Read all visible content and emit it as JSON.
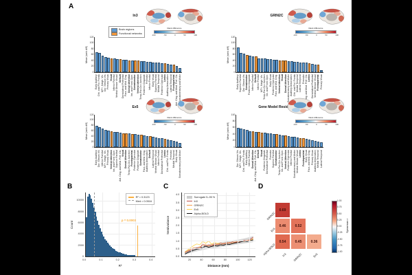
{
  "panel_labels": {
    "a": "A",
    "b": "B",
    "c": "C",
    "d": "D"
  },
  "colors": {
    "bar_region": "#5b9bd5",
    "bar_network": "#f89a38",
    "hist_fill": "#5b96c8",
    "hist_edge": "#2d5f8a",
    "r2_line": "#fbb040",
    "med_line": "#999999",
    "annotation": "#fbb040",
    "band": "#cccccc"
  },
  "brain_inset": {
    "colorbar_label": "Rank difference",
    "ticks": [
      "-100",
      "-50",
      "0",
      "50",
      "100"
    ]
  },
  "chart_data": [
    {
      "id": "in3",
      "type": "bar",
      "title": "In3",
      "ylabel": "Mean |rank diff|",
      "ylim": [
        0,
        120
      ],
      "yticks": [
        0,
        20,
        40,
        60,
        80,
        100,
        120
      ],
      "legend": [
        "Brain regions",
        "Functional networks"
      ],
      "categories": [
        "Early Auditory",
        "Orb. and Pol. Frontal",
        "MT+, Neigh. Vis.",
        "Dor. Stream Vis.",
        "Primary Visual",
        "Visual",
        "Inferior Parietal",
        "Ventral Stream Visual",
        "Default",
        "Dorsolateral Prefrontal",
        "Para. and Mid. Cing.",
        "Dorsal Attention",
        "Ins. and Front. Oper.",
        "Somatomotor",
        "Ventral Attention",
        "Temp-Par-Occ Junction",
        "Posterior Cingulate",
        "Premotor",
        "Inferior Frontal",
        "Early Visual",
        "Superior Parietal",
        "Medial Temporal",
        "Posterior Opercular",
        "Limbic",
        "Auditory Association",
        "Lateral Temporal",
        "Frontoparietal",
        "Ant. Cing. and Med. Pref. Ctx.",
        "Somatosensory and Motor"
      ],
      "values": [
        68,
        66,
        57,
        51,
        49,
        48,
        46,
        45,
        44,
        43,
        42,
        41,
        41,
        40,
        40,
        38,
        37,
        36,
        35,
        34,
        33,
        32,
        31,
        30,
        28,
        27,
        25,
        22,
        13
      ],
      "network_idx": [
        5,
        8,
        11,
        13,
        14,
        23,
        26
      ]
    },
    {
      "id": "grin2c",
      "type": "bar",
      "title": "GRIN2C",
      "ylabel": "Mean |rank diff|",
      "ylim": [
        0,
        120
      ],
      "yticks": [
        0,
        20,
        40,
        60,
        80,
        100,
        120
      ],
      "categories": [
        "Early Auditory",
        "Superior Parietal",
        "Dor. Stream Vis.",
        "Somatomotor",
        "Posterior Cingulate",
        "Inferior Parietal",
        "Default",
        "Inferior Frontal",
        "MT+, Neigh. Vis.",
        "Temp-Par-Occ Junction",
        "Ins. and Front. Oper.",
        "Early Visual",
        "Posterior Opercular",
        "Para. and Mid. Cing.",
        "Ventral Attention",
        "Visual",
        "Dorsal Attention",
        "Somatosensory and Motor",
        "Auditory Association",
        "Orb. and Pol. Frontal",
        "Medial Temporal",
        "Lateral Temporal",
        "Premotor",
        "Ant. Cing. and Med. Pref. Ctx.",
        "Limbic",
        "Dorsolateral Prefrontal",
        "Ventral Stream Visual",
        "Frontoparietal",
        "Primary Visual"
      ],
      "values": [
        85,
        66,
        63,
        60,
        57,
        55,
        53,
        48,
        47,
        46,
        45,
        44,
        43,
        42,
        41,
        40,
        39,
        38,
        37,
        36,
        35,
        34,
        33,
        32,
        30,
        28,
        27,
        25,
        8
      ],
      "network_idx": [
        3,
        6,
        14,
        15,
        16,
        24,
        27
      ]
    },
    {
      "id": "ex5",
      "type": "bar",
      "title": "Ex5",
      "ylabel": "Mean |rank diff|",
      "ylim": [
        0,
        120
      ],
      "yticks": [
        0,
        20,
        40,
        60,
        80,
        100,
        120
      ],
      "categories": [
        "Early Auditory",
        "Dor. Stream Vis.",
        "Inferior Parietal",
        "MT+, Neigh. Vis.",
        "Primary Visual",
        "Ventral Attention",
        "Ins. and Front. Oper.",
        "Superior Parietal",
        "Ant. Cing. and Med. Pref. Ctx.",
        "Visual",
        "Dorsal Attention",
        "Temp-Par-Occ Junction",
        "Frontoparietal",
        "Posterior Opercular",
        "Posterior Cingulate",
        "Somatomotor",
        "Para. and Mid. Cing.",
        "Auditory Association",
        "Default",
        "Lateral Temporal",
        "Ventral Stream Visual",
        "Inferior Frontal",
        "Dorsolateral Prefrontal",
        "Limbic",
        "Orb. and Pol. Frontal",
        "Premotor",
        "Medial Temporal",
        "Early Visual",
        "Somatosensory and Motor"
      ],
      "values": [
        78,
        75,
        70,
        65,
        62,
        58,
        56,
        55,
        54,
        52,
        51,
        50,
        49,
        48,
        46,
        45,
        43,
        41,
        40,
        38,
        36,
        34,
        32,
        30,
        28,
        26,
        24,
        20,
        15
      ],
      "network_idx": [
        5,
        9,
        10,
        12,
        15,
        18,
        23
      ]
    },
    {
      "id": "residuals",
      "type": "bar",
      "title": "Gene Model Residuals",
      "ylabel": "Mean |rank diff|",
      "ylim": [
        0,
        100
      ],
      "yticks": [
        0,
        20,
        40,
        60,
        80,
        100
      ],
      "categories": [
        "Dor. Stream Vis.",
        "MT+, Neigh. Vis.",
        "Orb. and Pol. Frontal",
        "Early Auditory",
        "Inferior Parietal",
        "Dorsal Attention",
        "Ant. Cing. and Med. Pref. Ctx.",
        "Default",
        "Visual",
        "Posterior Cingulate",
        "Dorsolateral Prefrontal",
        "Premotor",
        "Superior Parietal",
        "Somatomotor",
        "Temp-Par-Occ Junction",
        "Ins. and Front. Oper.",
        "Ventral Attention",
        "Posterior Opercular",
        "Inferior Frontal",
        "Somatosensory and Motor",
        "Ventral Stream Visual",
        "Limbic",
        "Frontoparietal",
        "Early Visual",
        "Para. and Mid. Cing.",
        "Primary Visual",
        "Auditory Association",
        "Medial Temporal",
        "Lateral Temporal"
      ],
      "values": [
        60,
        57,
        55,
        53,
        50,
        48,
        47,
        46,
        45,
        44,
        43,
        42,
        41,
        40,
        38,
        37,
        36,
        34,
        33,
        31,
        30,
        28,
        27,
        25,
        24,
        22,
        20,
        18,
        15
      ],
      "network_idx": [
        5,
        7,
        8,
        13,
        16,
        21,
        22
      ]
    },
    {
      "id": "r2_hist",
      "type": "bar",
      "xlabel": "R²",
      "ylabel": "Count",
      "xlim": [
        0,
        0.42
      ],
      "ylim": [
        0,
        11500
      ],
      "xticks": [
        "0.0",
        "0.1",
        "0.2",
        "0.3",
        "0.4"
      ],
      "xtick_vals": [
        0,
        0.1,
        0.2,
        0.3,
        0.4
      ],
      "yticks": [
        0,
        2000,
        4000,
        6000,
        8000,
        10000
      ],
      "bin_start": 0.0,
      "bin_width": 0.0075,
      "counts": [
        7000,
        10800,
        11300,
        11000,
        10400,
        9600,
        8800,
        8000,
        7200,
        6400,
        5700,
        5100,
        4500,
        4000,
        3550,
        3150,
        2800,
        2480,
        2200,
        1950,
        1720,
        1520,
        1340,
        1180,
        1040,
        910,
        800,
        700,
        610,
        530,
        460,
        400,
        340,
        290,
        240,
        200,
        160,
        130,
        100,
        80
      ],
      "vline_r2": 0.3123,
      "vline_r2_top": 5600,
      "vline_med": 0.0516,
      "legend": [
        "R² = 0.3123",
        "Med = 0.0516"
      ],
      "annotation": "p = 0.0003"
    },
    {
      "id": "variogram",
      "type": "line",
      "xlabel": "Distance (mm)",
      "ylabel": "Semivariance",
      "xlim": [
        5,
        130
      ],
      "ylim": [
        0,
        4.2
      ],
      "xticks": [
        20,
        40,
        60,
        80,
        100,
        120
      ],
      "yticks": [
        "0.0",
        "0.5",
        "1.0",
        "1.5",
        "2.0",
        "2.5",
        "3.0",
        "3.5",
        "4.0"
      ],
      "ytick_vals": [
        0,
        0.5,
        1,
        1.5,
        2,
        2.5,
        3,
        3.5,
        4
      ],
      "x": [
        10,
        15,
        20,
        25,
        30,
        35,
        40,
        45,
        50,
        55,
        60,
        65,
        70,
        75,
        80,
        85,
        90,
        95,
        100,
        105,
        110,
        115,
        120,
        125
      ],
      "band": {
        "name": "Surrogate 5–95 %",
        "lower": [
          0.15,
          0.22,
          0.28,
          0.33,
          0.38,
          0.42,
          0.46,
          0.5,
          0.53,
          0.56,
          0.59,
          0.62,
          0.65,
          0.68,
          0.71,
          0.74,
          0.77,
          0.8,
          0.83,
          0.86,
          0.89,
          0.92,
          0.95,
          0.98
        ],
        "upper": [
          0.4,
          0.48,
          0.55,
          0.61,
          0.66,
          0.71,
          0.75,
          0.79,
          0.83,
          0.86,
          0.9,
          0.93,
          0.96,
          0.99,
          1.02,
          1.05,
          1.08,
          1.11,
          1.14,
          1.18,
          1.22,
          1.26,
          1.31,
          1.38
        ]
      },
      "series": [
        {
          "name": "In3",
          "color": "#c0504a",
          "values": [
            0.3,
            0.38,
            0.46,
            0.55,
            0.6,
            0.57,
            0.86,
            0.7,
            0.79,
            0.72,
            0.88,
            0.8,
            0.92,
            0.85,
            0.96,
            0.9,
            1.0,
            0.95,
            1.05,
            1.0,
            1.1,
            1.05,
            1.16,
            1.3
          ]
        },
        {
          "name": "GRIN2C",
          "color": "#f59a49",
          "values": [
            0.28,
            0.42,
            0.52,
            0.62,
            0.56,
            0.66,
            0.76,
            0.82,
            0.7,
            0.83,
            0.78,
            0.86,
            0.8,
            0.9,
            0.86,
            0.96,
            0.9,
            1.0,
            0.97,
            1.06,
            1.0,
            1.1,
            1.07,
            1.22
          ]
        },
        {
          "name": "Ex5",
          "color": "#fdd34e",
          "values": [
            0.34,
            0.48,
            0.62,
            0.76,
            0.86,
            0.8,
            1.02,
            0.9,
            1.05,
            0.84,
            0.96,
            0.88,
            0.92,
            0.86,
            0.96,
            0.9,
            1.0,
            0.96,
            1.06,
            1.0,
            1.08,
            1.03,
            1.1,
            1.16
          ]
        },
        {
          "name": "Alpha-BOLD",
          "color": "#111111",
          "values": [
            0.2,
            0.3,
            0.38,
            0.45,
            0.52,
            0.55,
            0.62,
            0.72,
            0.64,
            0.7,
            0.75,
            0.72,
            0.8,
            0.77,
            0.85,
            0.82,
            0.88,
            0.92,
            0.95,
            1.0,
            1.04,
            1.01,
            1.07,
            1.12
          ]
        }
      ]
    },
    {
      "id": "spearman",
      "type": "heatmap",
      "rows": [
        "GRIN2C",
        "Ex5",
        "Alpha-BOLD"
      ],
      "cols": [
        "In3",
        "GRIN2C",
        "Ex5"
      ],
      "values": [
        [
          0.69,
          null,
          null
        ],
        [
          0.46,
          0.52,
          null
        ],
        [
          0.54,
          0.45,
          0.36
        ]
      ],
      "cell_colors": [
        [
          "#c23b33",
          null,
          null
        ],
        [
          "#ec8c70",
          "#e3735a",
          null
        ],
        [
          "#e06a50",
          "#ec8f73",
          "#f3ab8d"
        ]
      ],
      "colorbar": {
        "label": "Spearman r",
        "ticks": [
          "1.00",
          "0.75",
          "0.50",
          "0.25",
          "0.00",
          "-0.25",
          "-0.50",
          "-0.75",
          "-1.00"
        ]
      }
    }
  ]
}
